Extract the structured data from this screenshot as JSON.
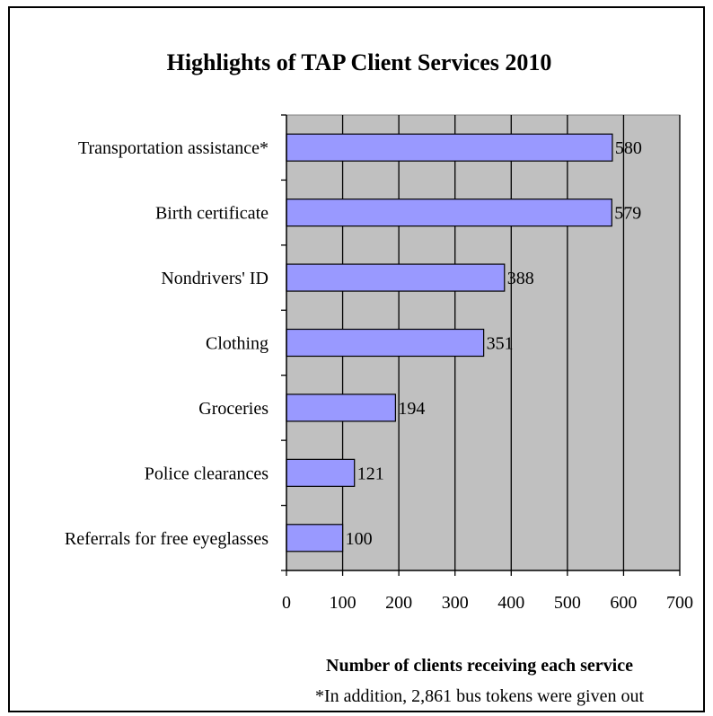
{
  "chart_data": {
    "type": "bar",
    "orientation": "horizontal",
    "title": "Highlights of TAP Client Services 2010",
    "categories": [
      "Transportation assistance*",
      "Birth certificate",
      "Nondrivers' ID",
      "Clothing",
      "Groceries",
      "Police clearances",
      "Referrals for free eyeglasses"
    ],
    "values": [
      580,
      579,
      388,
      351,
      194,
      121,
      100
    ],
    "xlabel": "Number of clients receiving each service",
    "ylabel": "",
    "xlim": [
      0,
      700
    ],
    "xticks": [
      "0",
      "100",
      "200",
      "300",
      "400",
      "500",
      "600",
      "700"
    ],
    "grid": "vertical",
    "legend": "none",
    "footnote": "*In addition, 2,861 bus tokens were given out",
    "colors": {
      "bar_fill": "#9999ff",
      "plot_background": "#c0c0c0",
      "gridline": "#000000"
    }
  }
}
